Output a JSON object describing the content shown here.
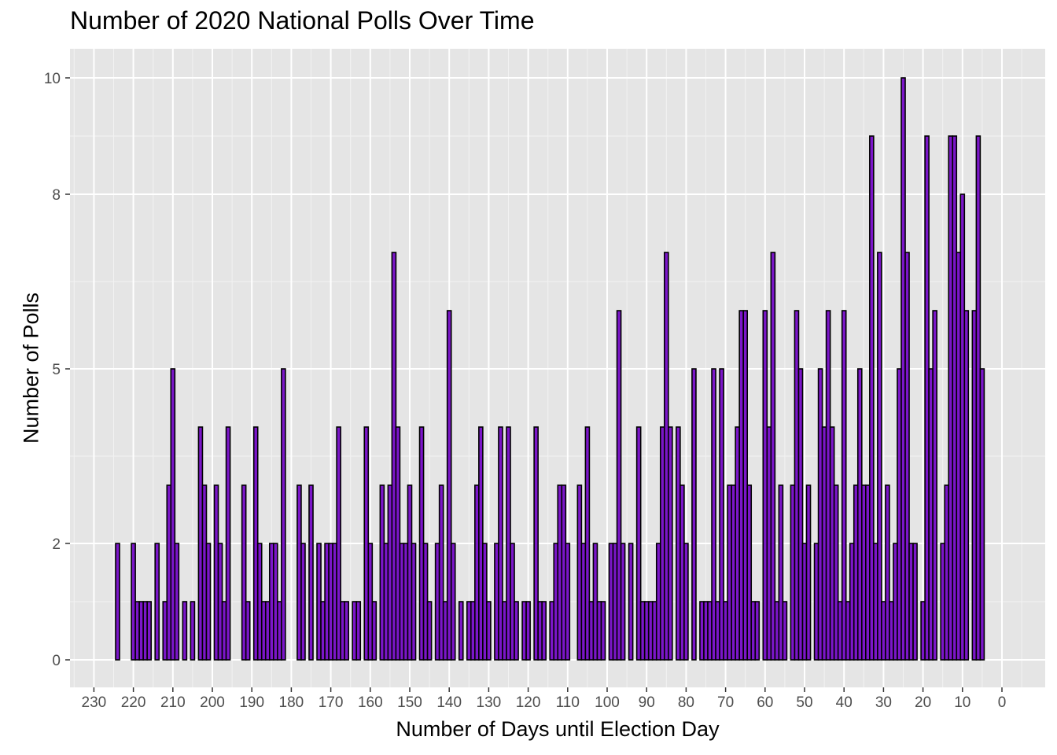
{
  "chart_data": {
    "type": "bar",
    "title": "Number of 2020 National Polls Over Time",
    "xlabel": "Number of Days until Election Day",
    "ylabel": "Number of Polls",
    "x_reversed": true,
    "xlim": [
      0,
      230
    ],
    "ylim": [
      0,
      10
    ],
    "x_ticks": [
      230,
      220,
      210,
      200,
      190,
      180,
      170,
      160,
      150,
      140,
      130,
      120,
      110,
      100,
      90,
      80,
      70,
      60,
      50,
      40,
      30,
      20,
      10,
      0
    ],
    "y_ticks": [
      0,
      2,
      5,
      8,
      10
    ],
    "grid": true,
    "background": "#e5e5e5",
    "bar_fill": "#7b16c9",
    "bar_outline": "#000000",
    "bars": [
      {
        "x": 224,
        "y": 2
      },
      {
        "x": 220,
        "y": 2
      },
      {
        "x": 219,
        "y": 1
      },
      {
        "x": 218,
        "y": 1
      },
      {
        "x": 217,
        "y": 1
      },
      {
        "x": 216,
        "y": 1
      },
      {
        "x": 214,
        "y": 2
      },
      {
        "x": 212,
        "y": 1
      },
      {
        "x": 211,
        "y": 3
      },
      {
        "x": 210,
        "y": 5
      },
      {
        "x": 209,
        "y": 2
      },
      {
        "x": 207,
        "y": 1
      },
      {
        "x": 205,
        "y": 1
      },
      {
        "x": 203,
        "y": 4
      },
      {
        "x": 202,
        "y": 3
      },
      {
        "x": 201,
        "y": 2
      },
      {
        "x": 199,
        "y": 3
      },
      {
        "x": 198,
        "y": 2
      },
      {
        "x": 197,
        "y": 1
      },
      {
        "x": 196,
        "y": 4
      },
      {
        "x": 192,
        "y": 3
      },
      {
        "x": 191,
        "y": 1
      },
      {
        "x": 189,
        "y": 4
      },
      {
        "x": 188,
        "y": 2
      },
      {
        "x": 187,
        "y": 1
      },
      {
        "x": 186,
        "y": 1
      },
      {
        "x": 185,
        "y": 2
      },
      {
        "x": 184,
        "y": 2
      },
      {
        "x": 183,
        "y": 1
      },
      {
        "x": 182,
        "y": 5
      },
      {
        "x": 178,
        "y": 3
      },
      {
        "x": 177,
        "y": 2
      },
      {
        "x": 175,
        "y": 3
      },
      {
        "x": 173,
        "y": 2
      },
      {
        "x": 172,
        "y": 1
      },
      {
        "x": 171,
        "y": 2
      },
      {
        "x": 170,
        "y": 2
      },
      {
        "x": 169,
        "y": 2
      },
      {
        "x": 168,
        "y": 4
      },
      {
        "x": 167,
        "y": 1
      },
      {
        "x": 166,
        "y": 1
      },
      {
        "x": 164,
        "y": 1
      },
      {
        "x": 163,
        "y": 1
      },
      {
        "x": 161,
        "y": 4
      },
      {
        "x": 160,
        "y": 2
      },
      {
        "x": 159,
        "y": 1
      },
      {
        "x": 157,
        "y": 3
      },
      {
        "x": 156,
        "y": 2
      },
      {
        "x": 155,
        "y": 3
      },
      {
        "x": 154,
        "y": 7
      },
      {
        "x": 153,
        "y": 4
      },
      {
        "x": 152,
        "y": 2
      },
      {
        "x": 151,
        "y": 2
      },
      {
        "x": 150,
        "y": 3
      },
      {
        "x": 149,
        "y": 2
      },
      {
        "x": 147,
        "y": 4
      },
      {
        "x": 146,
        "y": 2
      },
      {
        "x": 145,
        "y": 1
      },
      {
        "x": 143,
        "y": 2
      },
      {
        "x": 142,
        "y": 3
      },
      {
        "x": 141,
        "y": 1
      },
      {
        "x": 140,
        "y": 6
      },
      {
        "x": 139,
        "y": 2
      },
      {
        "x": 137,
        "y": 1
      },
      {
        "x": 135,
        "y": 1
      },
      {
        "x": 134,
        "y": 1
      },
      {
        "x": 133,
        "y": 3
      },
      {
        "x": 132,
        "y": 4
      },
      {
        "x": 131,
        "y": 2
      },
      {
        "x": 130,
        "y": 1
      },
      {
        "x": 128,
        "y": 2
      },
      {
        "x": 127,
        "y": 4
      },
      {
        "x": 126,
        "y": 1
      },
      {
        "x": 125,
        "y": 4
      },
      {
        "x": 124,
        "y": 2
      },
      {
        "x": 123,
        "y": 1
      },
      {
        "x": 121,
        "y": 1
      },
      {
        "x": 120,
        "y": 1
      },
      {
        "x": 118,
        "y": 4
      },
      {
        "x": 117,
        "y": 1
      },
      {
        "x": 116,
        "y": 1
      },
      {
        "x": 114,
        "y": 1
      },
      {
        "x": 113,
        "y": 2
      },
      {
        "x": 112,
        "y": 3
      },
      {
        "x": 111,
        "y": 3
      },
      {
        "x": 110,
        "y": 2
      },
      {
        "x": 107,
        "y": 3
      },
      {
        "x": 106,
        "y": 2
      },
      {
        "x": 105,
        "y": 4
      },
      {
        "x": 104,
        "y": 1
      },
      {
        "x": 103,
        "y": 2
      },
      {
        "x": 102,
        "y": 1
      },
      {
        "x": 101,
        "y": 1
      },
      {
        "x": 99,
        "y": 2
      },
      {
        "x": 98,
        "y": 2
      },
      {
        "x": 97,
        "y": 6
      },
      {
        "x": 96,
        "y": 2
      },
      {
        "x": 94,
        "y": 2
      },
      {
        "x": 92,
        "y": 4
      },
      {
        "x": 91,
        "y": 1
      },
      {
        "x": 90,
        "y": 1
      },
      {
        "x": 89,
        "y": 1
      },
      {
        "x": 88,
        "y": 1
      },
      {
        "x": 87,
        "y": 2
      },
      {
        "x": 86,
        "y": 4
      },
      {
        "x": 85,
        "y": 7
      },
      {
        "x": 84,
        "y": 4
      },
      {
        "x": 82,
        "y": 4
      },
      {
        "x": 81,
        "y": 3
      },
      {
        "x": 80,
        "y": 2
      },
      {
        "x": 78,
        "y": 5
      },
      {
        "x": 76,
        "y": 1
      },
      {
        "x": 75,
        "y": 1
      },
      {
        "x": 74,
        "y": 1
      },
      {
        "x": 73,
        "y": 5
      },
      {
        "x": 72,
        "y": 1
      },
      {
        "x": 71,
        "y": 5
      },
      {
        "x": 70,
        "y": 1
      },
      {
        "x": 69,
        "y": 3
      },
      {
        "x": 68,
        "y": 3
      },
      {
        "x": 67,
        "y": 4
      },
      {
        "x": 66,
        "y": 6
      },
      {
        "x": 65,
        "y": 6
      },
      {
        "x": 64,
        "y": 3
      },
      {
        "x": 63,
        "y": 1
      },
      {
        "x": 62,
        "y": 1
      },
      {
        "x": 60,
        "y": 6
      },
      {
        "x": 59,
        "y": 4
      },
      {
        "x": 58,
        "y": 7
      },
      {
        "x": 57,
        "y": 1
      },
      {
        "x": 56,
        "y": 3
      },
      {
        "x": 55,
        "y": 1
      },
      {
        "x": 53,
        "y": 3
      },
      {
        "x": 52,
        "y": 6
      },
      {
        "x": 51,
        "y": 5
      },
      {
        "x": 50,
        "y": 2
      },
      {
        "x": 49,
        "y": 3
      },
      {
        "x": 47,
        "y": 2
      },
      {
        "x": 46,
        "y": 5
      },
      {
        "x": 45,
        "y": 4
      },
      {
        "x": 44,
        "y": 6
      },
      {
        "x": 43,
        "y": 4
      },
      {
        "x": 42,
        "y": 3
      },
      {
        "x": 41,
        "y": 1
      },
      {
        "x": 40,
        "y": 6
      },
      {
        "x": 39,
        "y": 1
      },
      {
        "x": 38,
        "y": 2
      },
      {
        "x": 37,
        "y": 3
      },
      {
        "x": 36,
        "y": 5
      },
      {
        "x": 35,
        "y": 3
      },
      {
        "x": 34,
        "y": 3
      },
      {
        "x": 33,
        "y": 9
      },
      {
        "x": 32,
        "y": 2
      },
      {
        "x": 31,
        "y": 7
      },
      {
        "x": 30,
        "y": 1
      },
      {
        "x": 29,
        "y": 3
      },
      {
        "x": 28,
        "y": 1
      },
      {
        "x": 27,
        "y": 2
      },
      {
        "x": 26,
        "y": 5
      },
      {
        "x": 25,
        "y": 10
      },
      {
        "x": 24,
        "y": 7
      },
      {
        "x": 23,
        "y": 2
      },
      {
        "x": 22,
        "y": 2
      },
      {
        "x": 20,
        "y": 1
      },
      {
        "x": 19,
        "y": 9
      },
      {
        "x": 18,
        "y": 5
      },
      {
        "x": 17,
        "y": 6
      },
      {
        "x": 15,
        "y": 2
      },
      {
        "x": 14,
        "y": 3
      },
      {
        "x": 13,
        "y": 9
      },
      {
        "x": 12,
        "y": 9
      },
      {
        "x": 11,
        "y": 7
      },
      {
        "x": 10,
        "y": 8
      },
      {
        "x": 9,
        "y": 6
      },
      {
        "x": 7,
        "y": 6
      },
      {
        "x": 6,
        "y": 9
      },
      {
        "x": 5,
        "y": 5
      }
    ]
  }
}
